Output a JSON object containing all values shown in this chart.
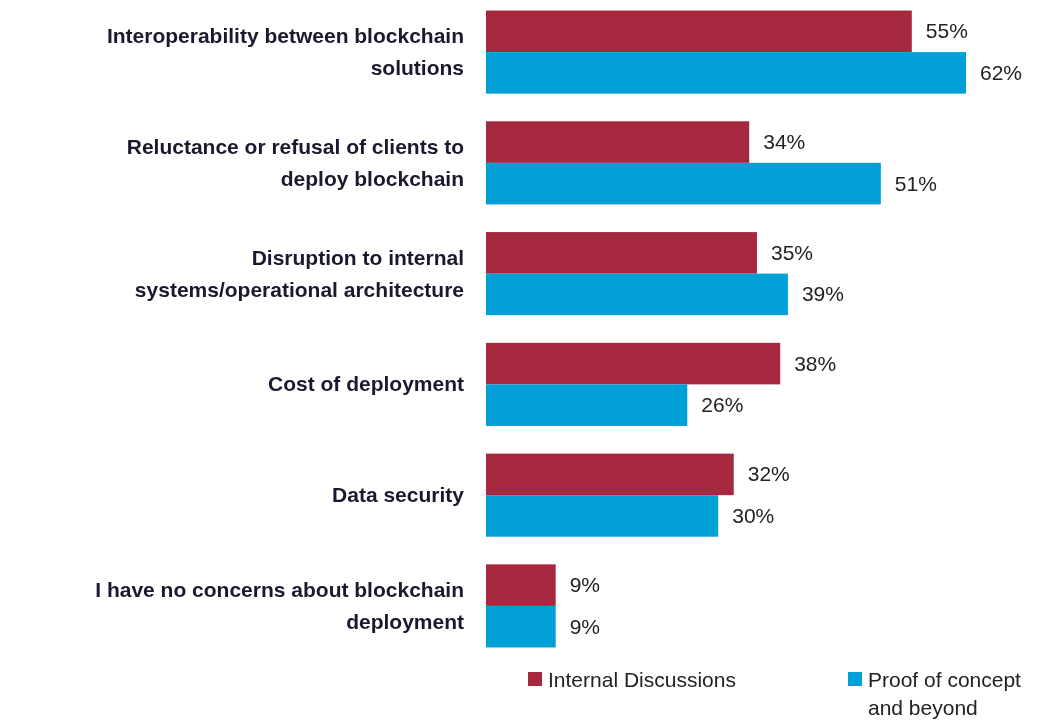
{
  "chart_data": {
    "type": "bar",
    "orientation": "horizontal",
    "categories": [
      "Interoperability between blockchain solutions",
      "Reluctance or refusal of clients to deploy blockchain",
      "Disruption to internal systems/operational architecture",
      "Cost of deployment",
      "Data security",
      "I have no concerns about blockchain deployment"
    ],
    "series": [
      {
        "name": "Internal Discussions",
        "color": "#a6283f",
        "values": [
          55,
          34,
          35,
          38,
          32,
          9
        ],
        "value_labels": [
          "55%",
          "34%",
          "35%",
          "38%",
          "32%",
          "9%"
        ]
      },
      {
        "name": "Proof of concept and beyond",
        "color": "#00a0d6",
        "values": [
          62,
          51,
          39,
          26,
          30,
          9
        ],
        "value_labels": [
          "62%",
          "51%",
          "39%",
          "26%",
          "30%",
          "9%"
        ]
      }
    ],
    "legend": "bottom"
  }
}
